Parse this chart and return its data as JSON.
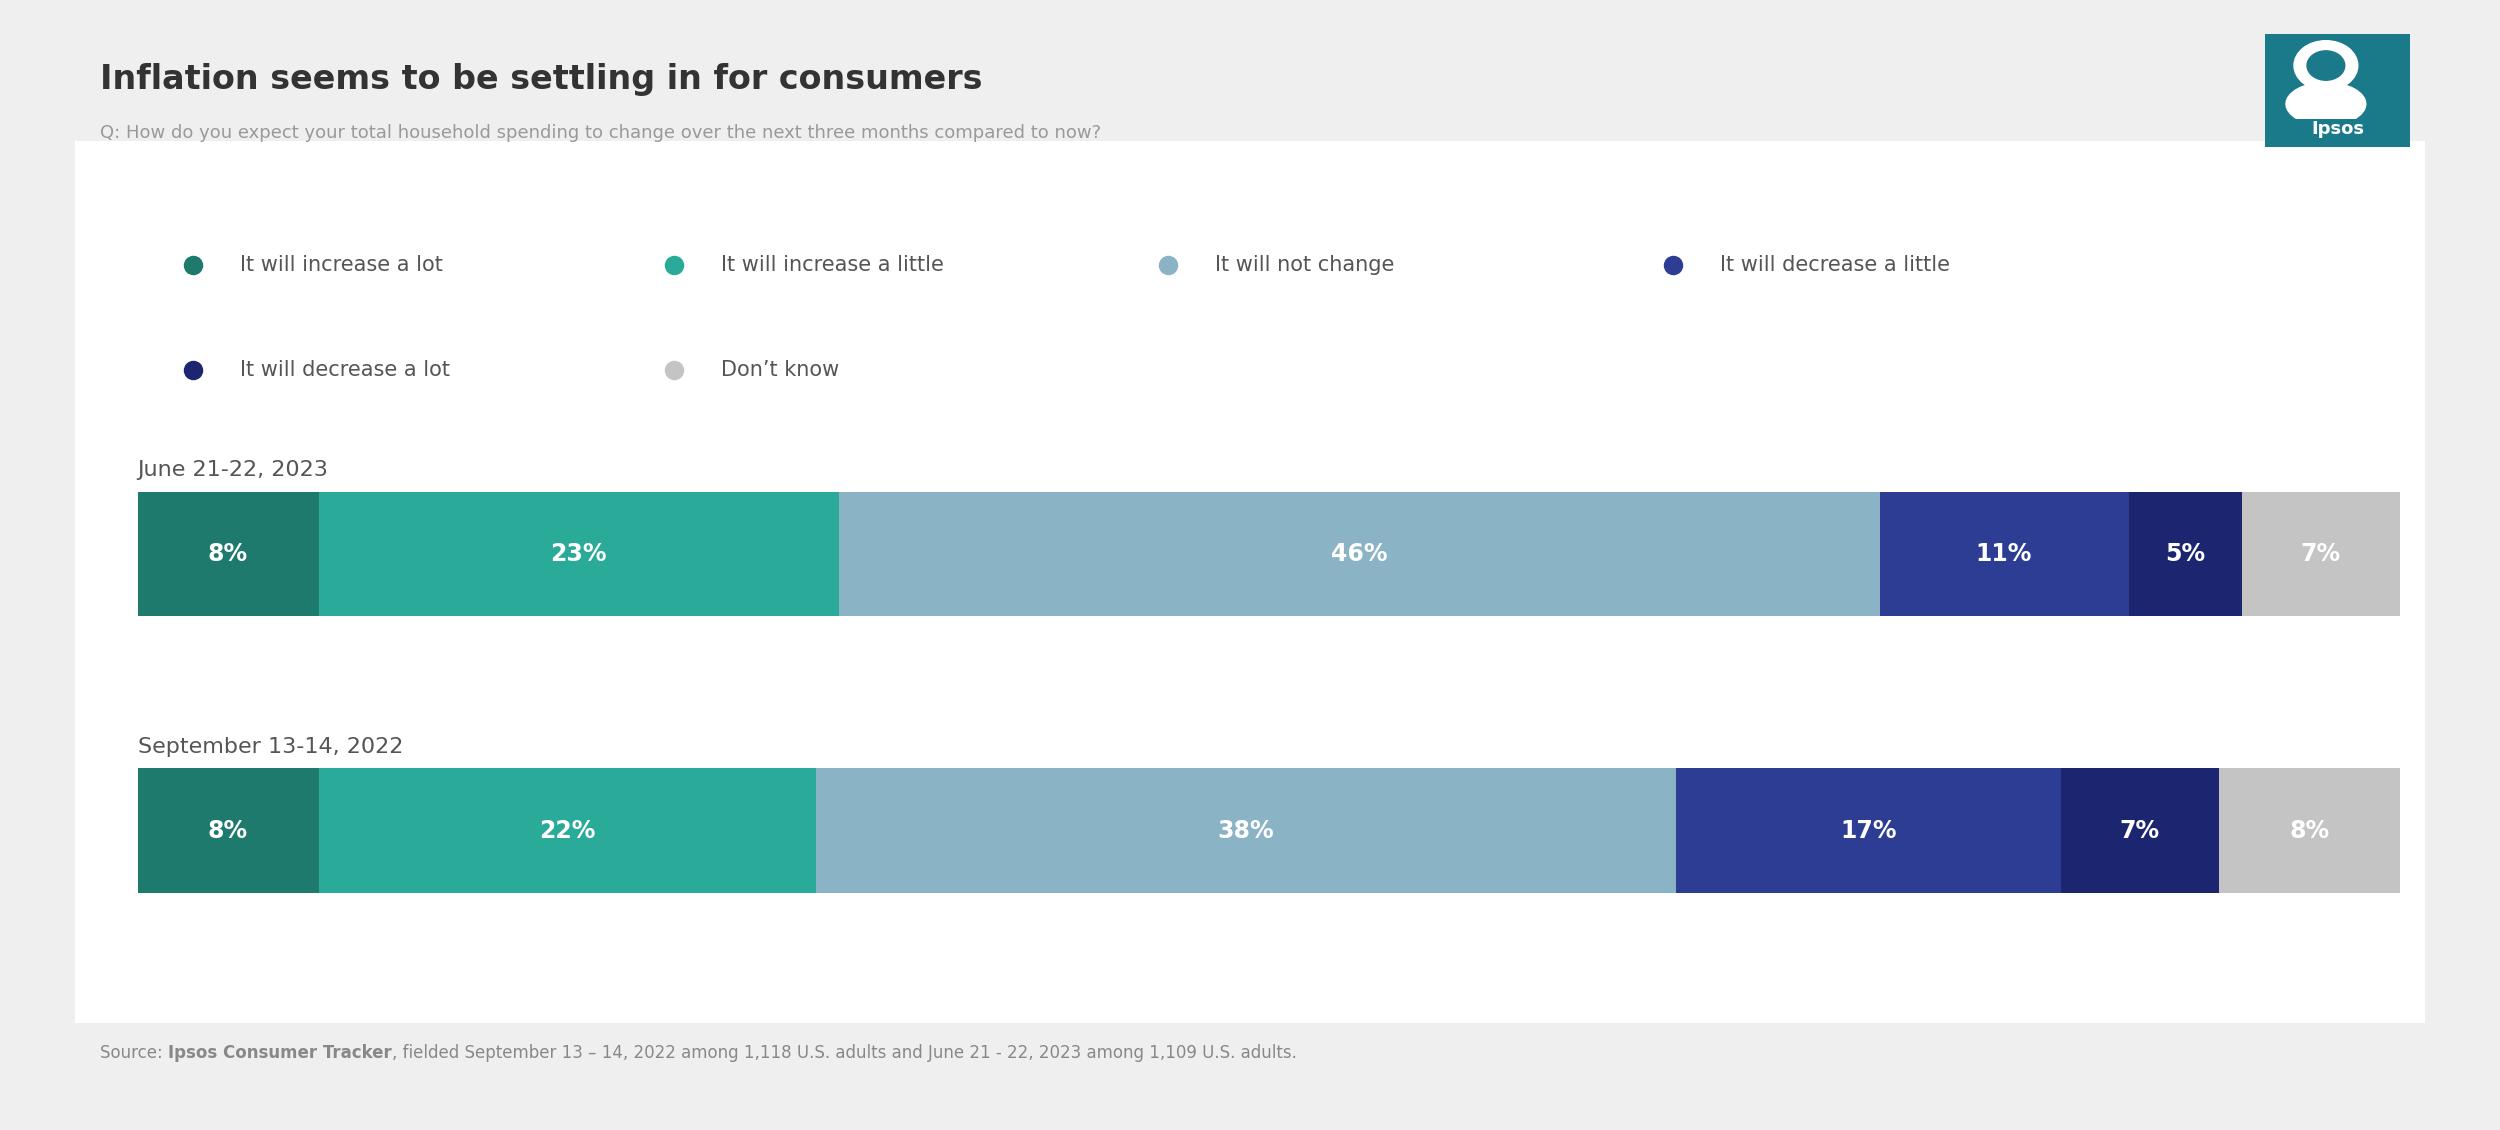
{
  "title": "Inflation seems to be settling in for consumers",
  "subtitle": "Q: How do you expect your total household spending to change over the next three months compared to now?",
  "source_pre": "Source: ",
  "source_bold": "Ipsos Consumer Tracker",
  "source_post": ", fielded September 13 – 14, 2022 among 1,118 U.S. adults and June 21 - 22, 2023 among 1,109 U.S. adults.",
  "categories": [
    "It will increase a lot",
    "It will increase a little",
    "It will not change",
    "It will decrease a little",
    "It will decrease a lot",
    "Don’t know"
  ],
  "colors": [
    "#1d7a6d",
    "#2aaa98",
    "#8ab4c5",
    "#2d3d94",
    "#1c2670",
    "#c4c4c4"
  ],
  "rows": [
    {
      "label": "June 21-22, 2023",
      "values": [
        8,
        23,
        46,
        11,
        5,
        7
      ]
    },
    {
      "label": "September 13-14, 2022",
      "values": [
        8,
        22,
        38,
        17,
        7,
        8
      ]
    }
  ],
  "background_outer": "#efefef",
  "background_card": "#ffffff",
  "title_fontsize": 24,
  "subtitle_fontsize": 13,
  "row_label_fontsize": 16,
  "bar_label_fontsize": 17,
  "legend_fontsize": 15,
  "source_fontsize": 12
}
